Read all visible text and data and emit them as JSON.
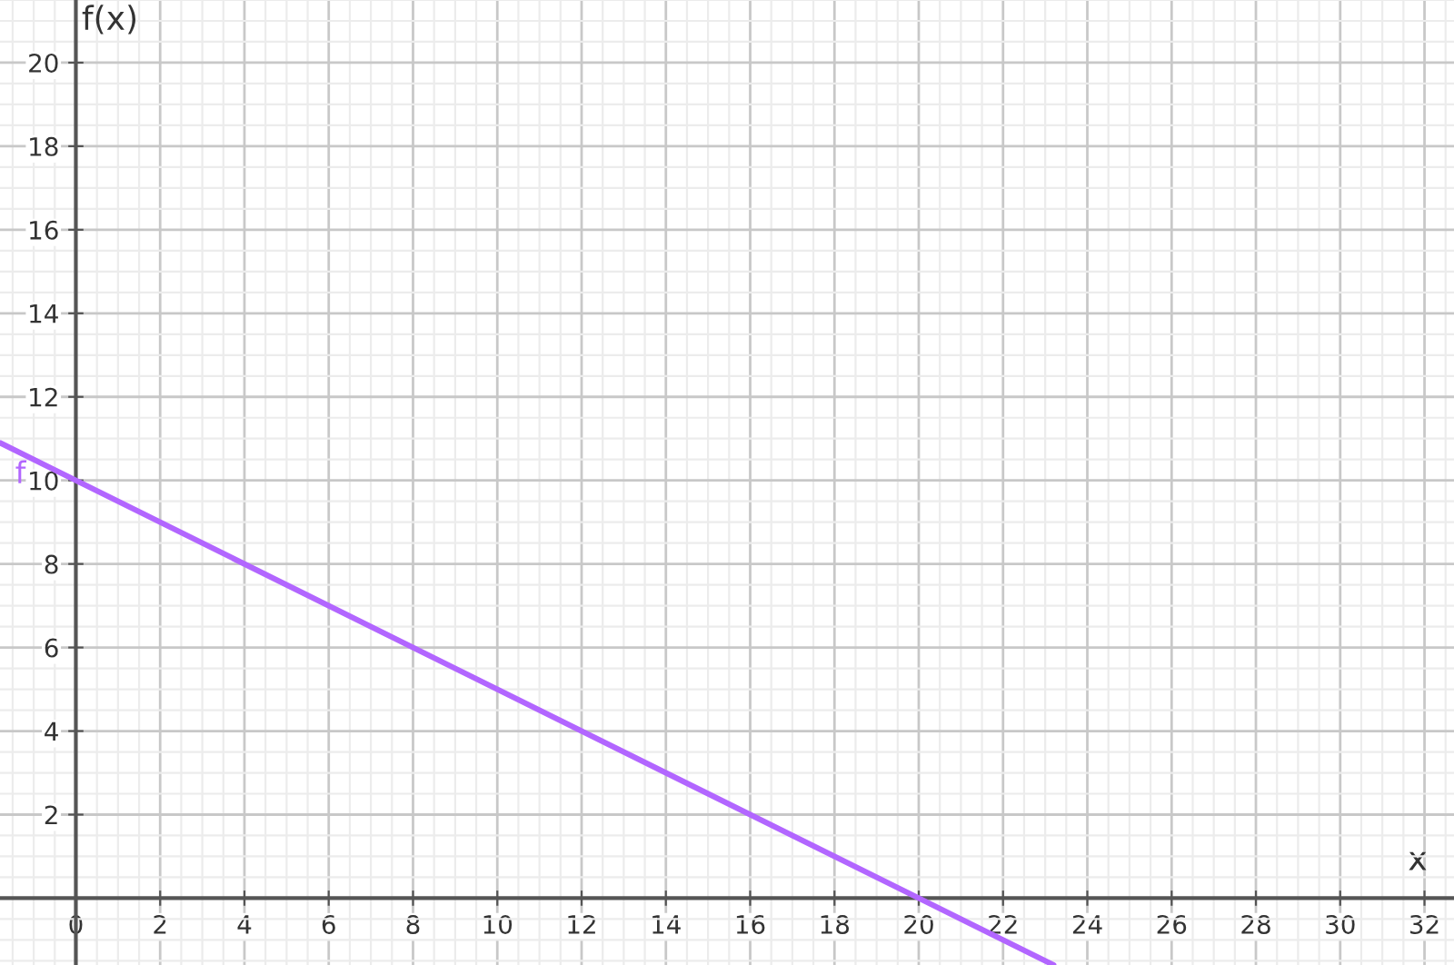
{
  "chart_data": {
    "type": "line",
    "xlabel": "x",
    "ylabel": "f(x)",
    "series": [
      {
        "name": "f",
        "color": "#b266ff",
        "x": [
          -1.8,
          23.2
        ],
        "values": [
          10.9,
          -1.6
        ]
      }
    ],
    "xlim": [
      -1.8,
      32.7
    ],
    "ylim": [
      -1.6,
      21.5
    ],
    "xticks": [
      0,
      2,
      4,
      6,
      8,
      10,
      12,
      14,
      16,
      18,
      20,
      22,
      24,
      26,
      28,
      30,
      32
    ],
    "yticks": [
      2,
      4,
      6,
      8,
      10,
      12,
      14,
      16,
      18,
      20
    ],
    "grid": true,
    "legend": false,
    "marker": "none",
    "line_style": "solid"
  }
}
